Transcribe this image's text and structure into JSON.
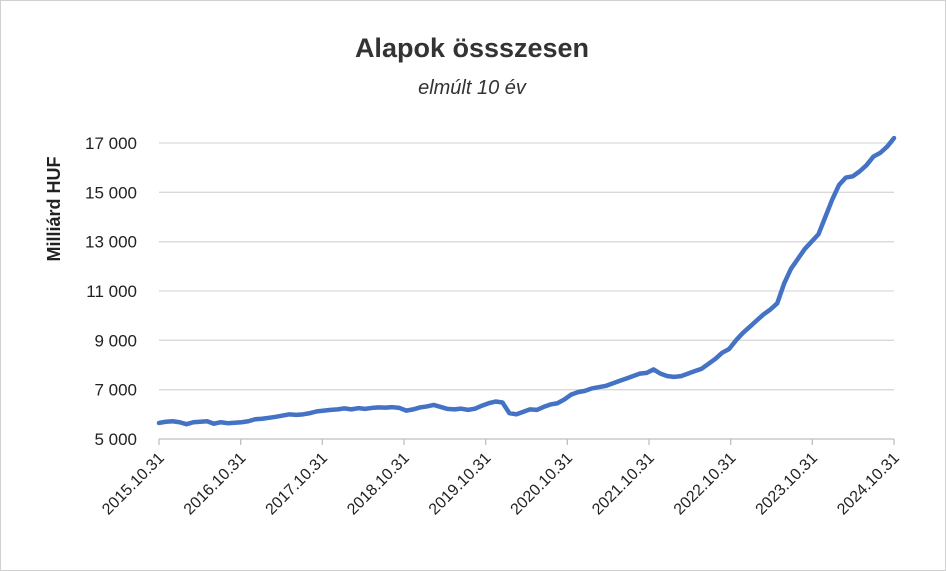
{
  "chart_data": {
    "type": "line",
    "title": "Alapok össszesen",
    "subtitle": "elmúlt 10 év",
    "xlabel": "",
    "ylabel": "Milliárd HUF",
    "ylim": [
      5000,
      17000
    ],
    "yticks": [
      5000,
      7000,
      9000,
      11000,
      13000,
      15000,
      17000
    ],
    "ytick_labels": [
      "5 000",
      "7 000",
      "9 000",
      "11 000",
      "13 000",
      "15 000",
      "17 000"
    ],
    "xtick_labels": [
      "2015.10.31",
      "2016.10.31",
      "2017.10.31",
      "2018.10.31",
      "2019.10.31",
      "2020.10.31",
      "2021.10.31",
      "2022.10.31",
      "2023.10.31",
      "2024.10.31"
    ],
    "grid": true,
    "legend": "none",
    "color": "#4472c4",
    "series": [
      {
        "values": [
          5650,
          5700,
          5720,
          5680,
          5600,
          5680,
          5700,
          5720,
          5620,
          5680,
          5640,
          5660,
          5680,
          5720,
          5800,
          5820,
          5860,
          5900,
          5950,
          6000,
          5980,
          6000,
          6050,
          6120,
          6150,
          6180,
          6200,
          6240,
          6200,
          6250,
          6220,
          6260,
          6280,
          6270,
          6290,
          6260,
          6150,
          6200,
          6280,
          6320,
          6380,
          6300,
          6220,
          6200,
          6230,
          6180,
          6230,
          6350,
          6450,
          6520,
          6480,
          6050,
          6000,
          6100,
          6200,
          6180,
          6300,
          6400,
          6450,
          6600,
          6800,
          6900,
          6950,
          7050,
          7100,
          7150,
          7250,
          7350,
          7450,
          7550,
          7650,
          7680,
          7820,
          7650,
          7550,
          7520,
          7550,
          7650,
          7750,
          7850,
          8050,
          8250,
          8500,
          8650,
          9000,
          9300,
          9550,
          9800,
          10050,
          10250,
          10500,
          11300,
          11900,
          12300,
          12700,
          13000,
          13300,
          14000,
          14700,
          15300,
          15600,
          15650,
          15850,
          16100,
          16450,
          16600,
          16850,
          17200
        ]
      }
    ]
  }
}
